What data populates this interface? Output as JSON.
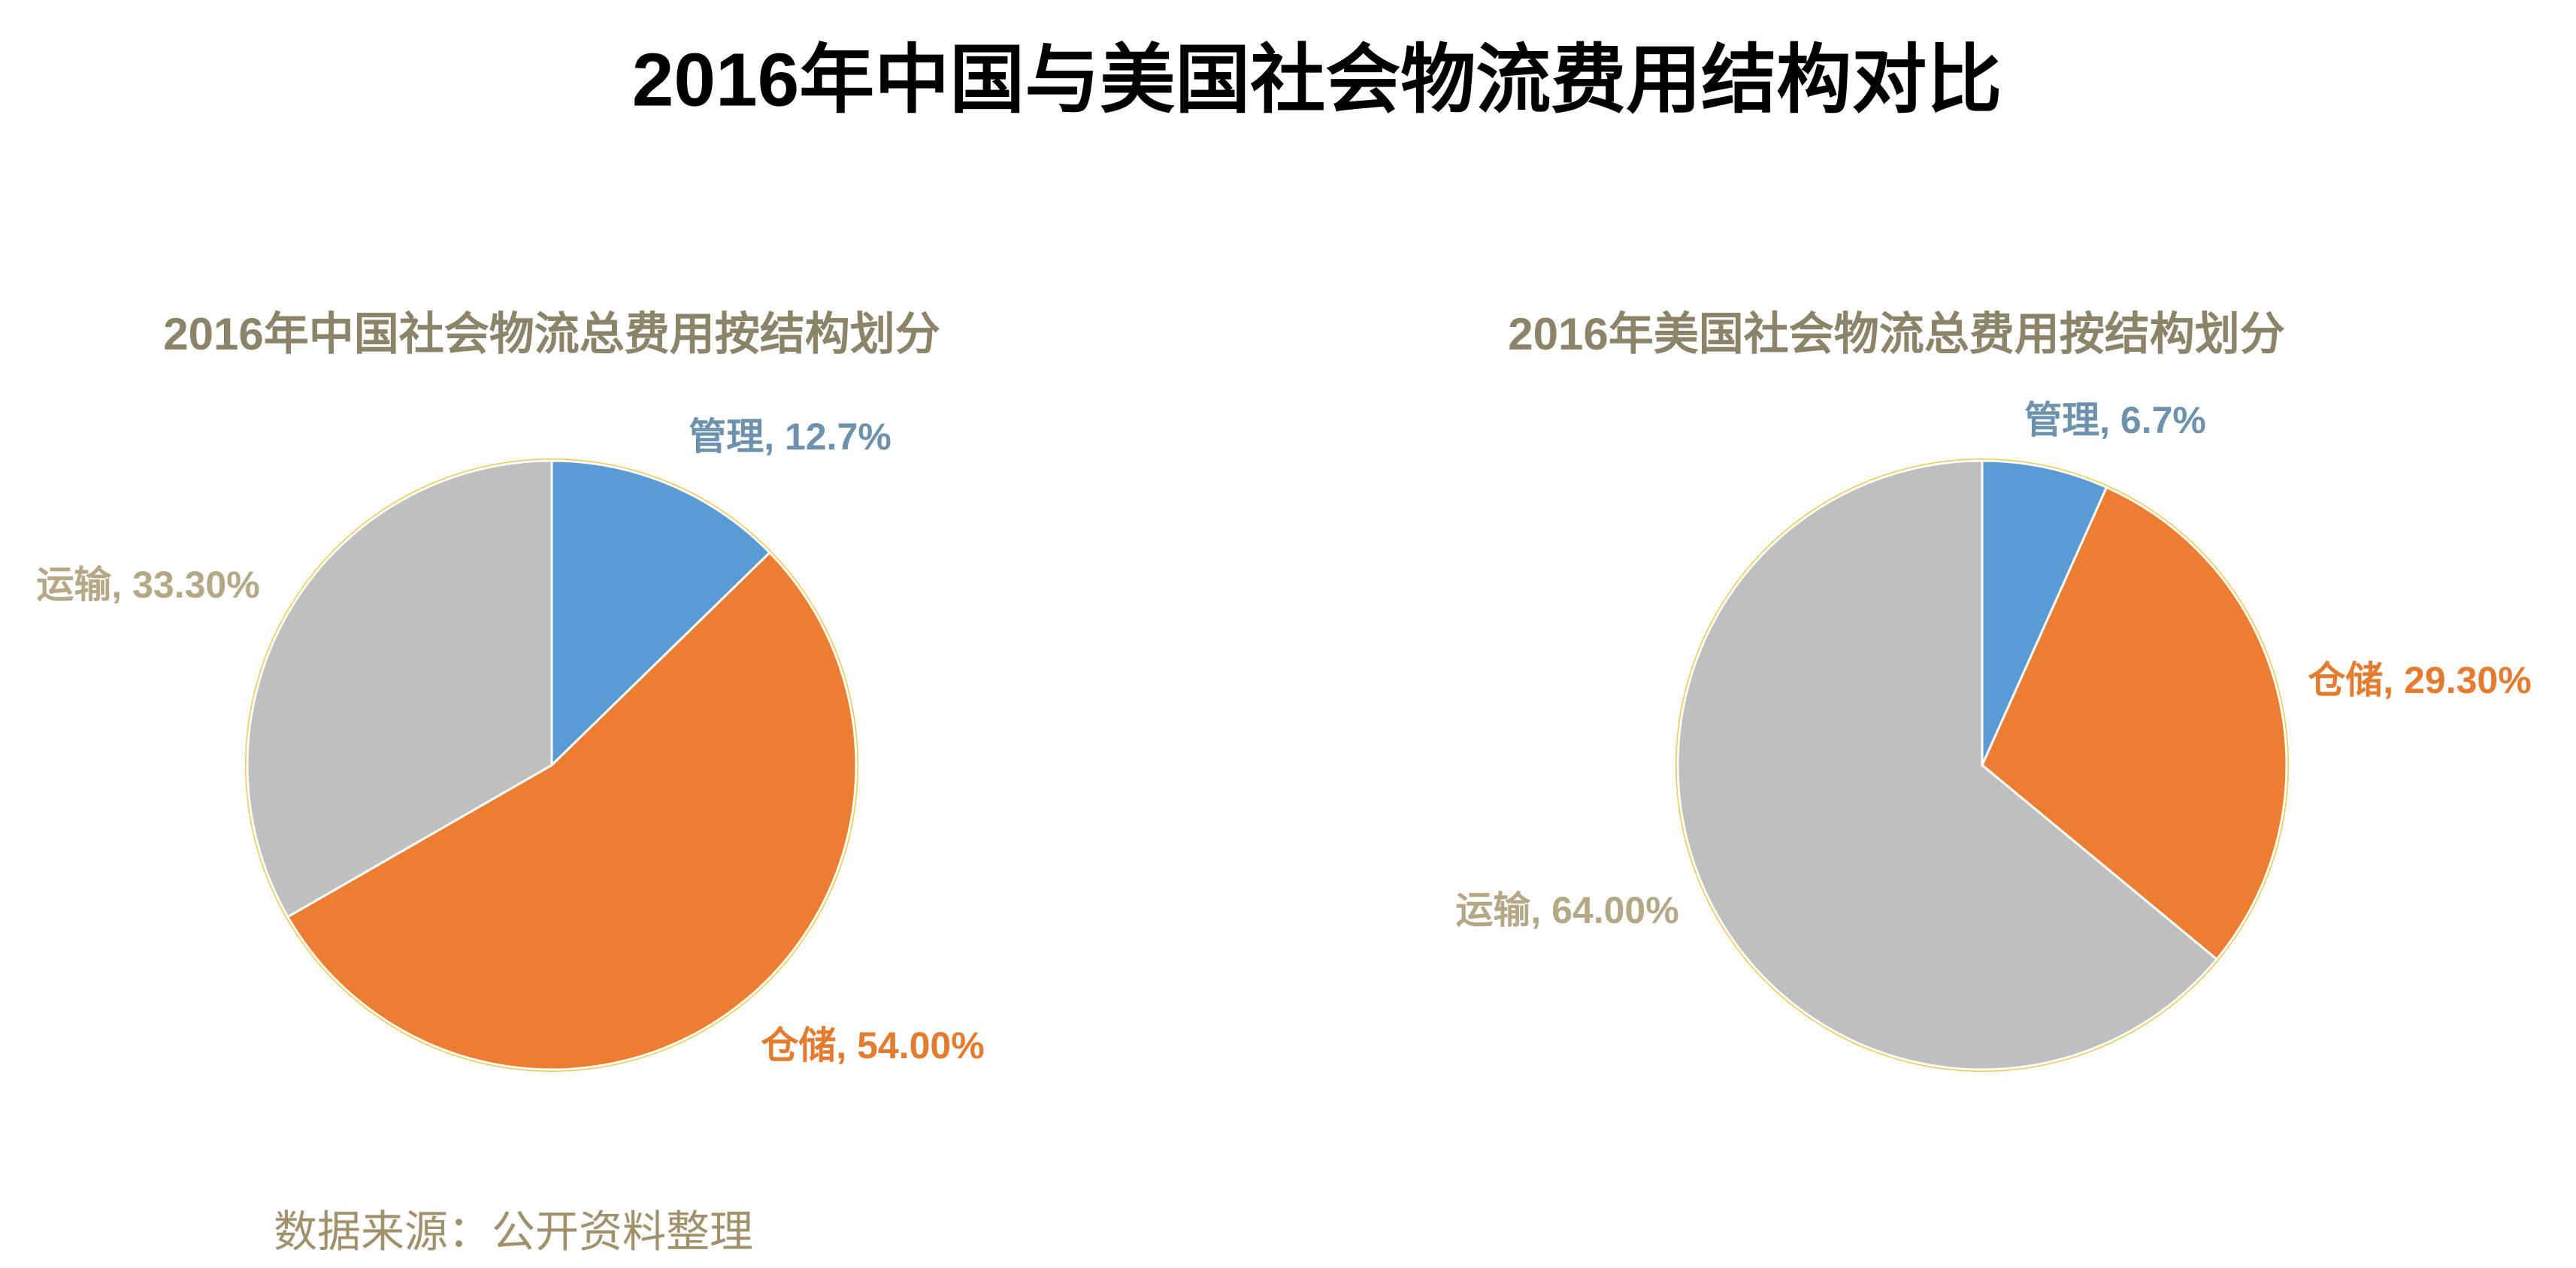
{
  "title": "2016年中国与美国社会物流费用结构对比",
  "chart_data": [
    {
      "type": "pie",
      "title": "2016年中国社会物流总费用按结构划分",
      "values": [
        12.7,
        54.0,
        33.3
      ],
      "value_labels": [
        "管理, 12.7%",
        "仓储, 54.00%",
        "运输, 33.30%"
      ],
      "colors": [
        "#5b9bd5",
        "#ed7d31",
        "#bfbfbf"
      ]
    },
    {
      "type": "pie",
      "title": "2016年美国社会物流总费用按结构划分",
      "values": [
        6.7,
        29.3,
        64.0
      ],
      "value_labels": [
        "管理, 6.7%",
        "仓储, 29.30%",
        "运输, 64.00%"
      ],
      "colors": [
        "#5b9bd5",
        "#ed7d31",
        "#bfbfbf"
      ]
    }
  ],
  "source": "数据来源：公开资料整理"
}
